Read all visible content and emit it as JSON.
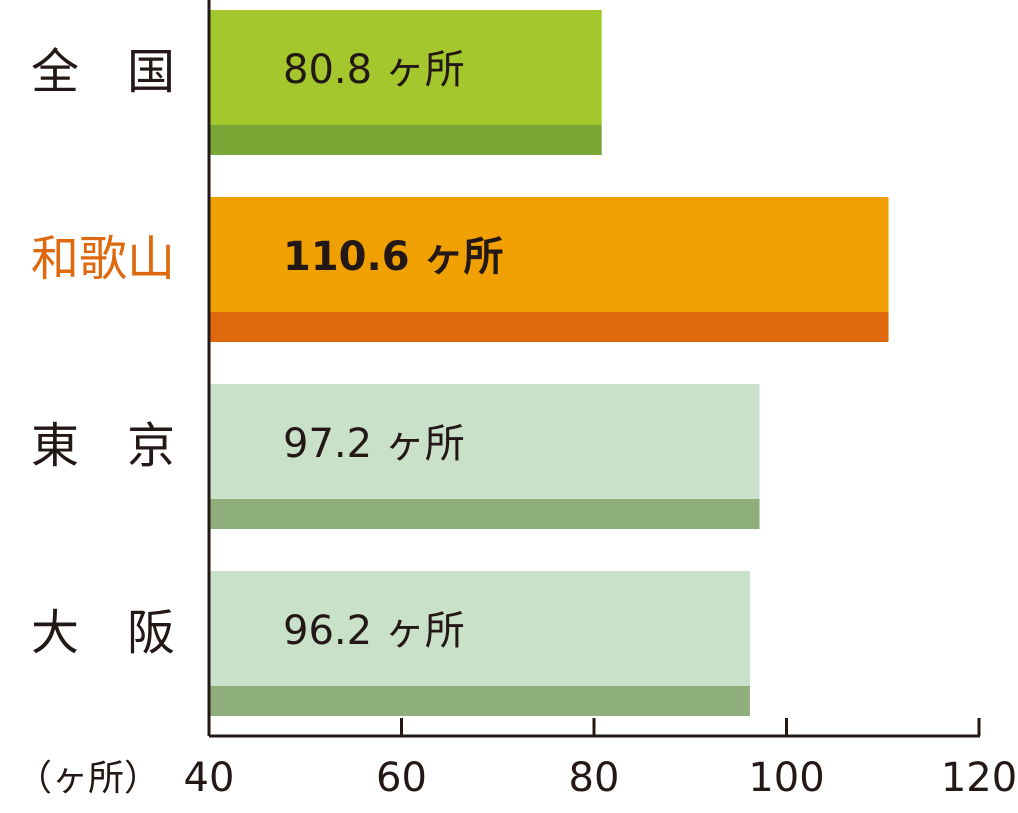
{
  "chart_data": {
    "type": "hbar",
    "categories": [
      "全　国",
      "和歌山",
      "東　京",
      "大　阪"
    ],
    "values": [
      80.8,
      110.6,
      97.2,
      96.2
    ],
    "value_labels": [
      "80.8 ヶ所",
      "110.6 ヶ所",
      "97.2 ヶ所",
      "96.2 ヶ所"
    ],
    "colors": [
      "#a3c72c",
      "#f0a000",
      "#c9e1c8",
      "#c9e1c8"
    ],
    "stripe_colors": [
      "#7aa636",
      "#df690e",
      "#8eae7b",
      "#8eae7b"
    ],
    "label_colors": [
      "#231815",
      "#df690e",
      "#231815",
      "#231815"
    ],
    "highlight": 1,
    "x_label": "（ヶ所）",
    "xlim": [
      40,
      120
    ],
    "xticks": [
      40,
      60,
      80,
      100,
      120
    ]
  }
}
